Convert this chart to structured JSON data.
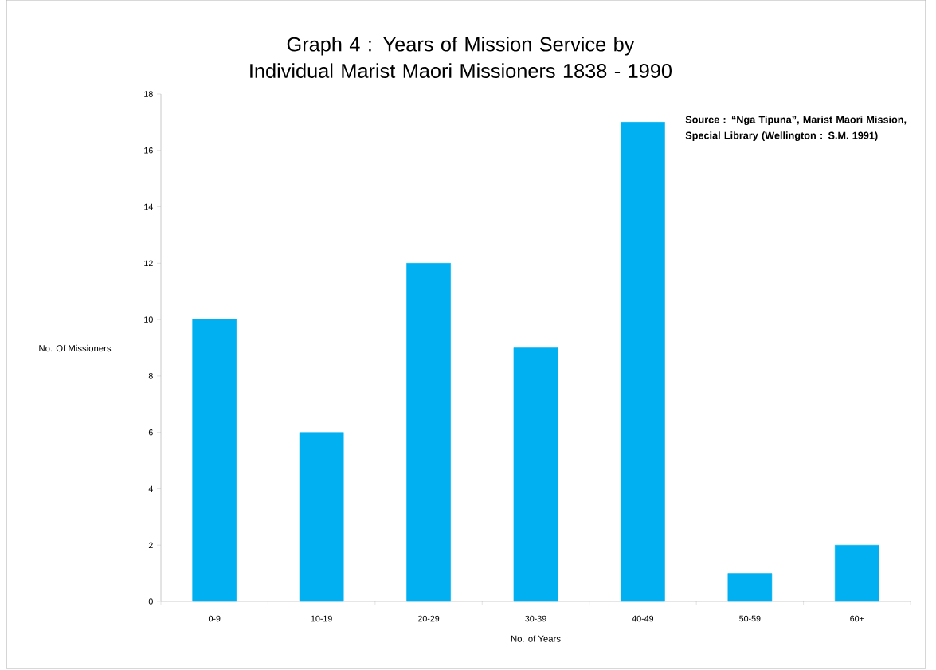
{
  "chart_data": {
    "type": "bar",
    "title": "Graph 4 : Years of Mission Service by Individual Marist Maori Missioners 1838 - 1990",
    "xlabel": "No. of Years",
    "ylabel": "No. Of Missioners",
    "categories": [
      "0-9",
      "10-19",
      "20-29",
      "30-39",
      "40-49",
      "50-59",
      "60+"
    ],
    "values": [
      10,
      6,
      12,
      9,
      17,
      1,
      2
    ],
    "color": "#00b0f0",
    "ylim": [
      0,
      18
    ],
    "yticks": [
      0,
      2,
      4,
      6,
      8,
      10,
      12,
      14,
      16,
      18
    ],
    "annotations": [
      "Source : “Nga Tipuna”, Marist Maori Mission, Special Library (Wellington : S.M. 1991)"
    ]
  }
}
